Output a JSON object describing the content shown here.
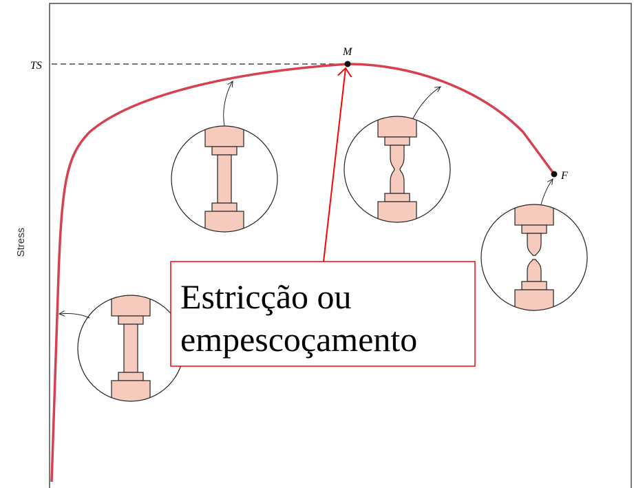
{
  "labels": {
    "y_axis": "Stress",
    "ts": "TS",
    "m": "M",
    "f": "F"
  },
  "annotation": {
    "lines": [
      "Estricção ou",
      "empescoçamento"
    ]
  }
}
